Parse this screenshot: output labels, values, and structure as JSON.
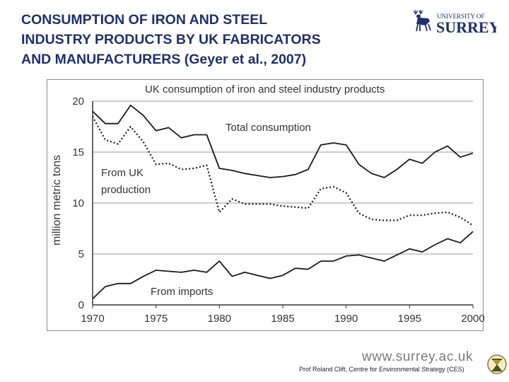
{
  "slide": {
    "title_lines": [
      "CONSUMPTION OF IRON AND STEEL",
      "INDUSTRY PRODUCTS BY UK FABRICATORS",
      "AND MANUFACTURERS (Geyer et al., 2007)"
    ],
    "logo": {
      "line1": "UNIVERSITY OF",
      "line2": "SURREY",
      "icon": "stag-icon",
      "color": "#1f2f6e"
    },
    "footer_url": "www.surrey.ac.uk",
    "footer_credit": "Prof Roland Clift, Centre for Environmental Strategy (CES)",
    "crest_icon": "ces-crest-icon",
    "title_color": "#1f2f6e"
  },
  "chart_data": {
    "type": "line",
    "title": "UK consumption of iron and steel industry products",
    "xlabel": "",
    "ylabel": "million metric tons",
    "xlim": [
      1970,
      2000
    ],
    "ylim": [
      0,
      20
    ],
    "x_ticks": [
      "1970",
      "1975",
      "1980",
      "1985",
      "1990",
      "1995",
      "2000"
    ],
    "y_ticks": [
      "0",
      "5",
      "10",
      "15",
      "20"
    ],
    "grid": "horizontal",
    "legend": "none",
    "annotations": [
      "Total consumption",
      "From UK",
      "production",
      "From imports"
    ],
    "x": [
      1970,
      1971,
      1972,
      1973,
      1974,
      1975,
      1976,
      1977,
      1978,
      1979,
      1980,
      1981,
      1982,
      1983,
      1984,
      1985,
      1986,
      1987,
      1988,
      1989,
      1990,
      1991,
      1992,
      1993,
      1994,
      1995,
      1996,
      1997,
      1998,
      1999,
      2000
    ],
    "series": [
      {
        "name": "Total consumption",
        "style": "solid",
        "color": "#1a1a1a",
        "values": [
          19.0,
          17.8,
          17.8,
          19.6,
          18.6,
          17.1,
          17.4,
          16.4,
          16.7,
          16.7,
          13.4,
          13.2,
          12.9,
          12.7,
          12.5,
          12.6,
          12.8,
          13.3,
          15.7,
          15.9,
          15.7,
          13.8,
          12.9,
          12.5,
          13.3,
          14.3,
          13.9,
          15.0,
          15.6,
          14.5,
          14.9
        ]
      },
      {
        "name": "From UK production",
        "style": "dotted",
        "color": "#1a1a1a",
        "values": [
          18.5,
          16.2,
          15.8,
          17.5,
          16.0,
          13.8,
          13.9,
          13.3,
          13.4,
          13.7,
          9.1,
          10.4,
          9.9,
          9.9,
          9.9,
          9.7,
          9.6,
          9.5,
          11.4,
          11.6,
          11.0,
          9.0,
          8.4,
          8.3,
          8.3,
          8.8,
          8.8,
          9.0,
          9.1,
          8.6,
          7.8
        ]
      },
      {
        "name": "From imports",
        "style": "solid",
        "color": "#1a1a1a",
        "values": [
          0.6,
          1.8,
          2.1,
          2.1,
          2.8,
          3.4,
          3.3,
          3.2,
          3.4,
          3.2,
          4.3,
          2.8,
          3.2,
          2.9,
          2.6,
          2.9,
          3.6,
          3.5,
          4.3,
          4.3,
          4.8,
          4.9,
          4.6,
          4.3,
          4.9,
          5.5,
          5.2,
          5.9,
          6.5,
          6.1,
          7.2
        ]
      }
    ]
  }
}
